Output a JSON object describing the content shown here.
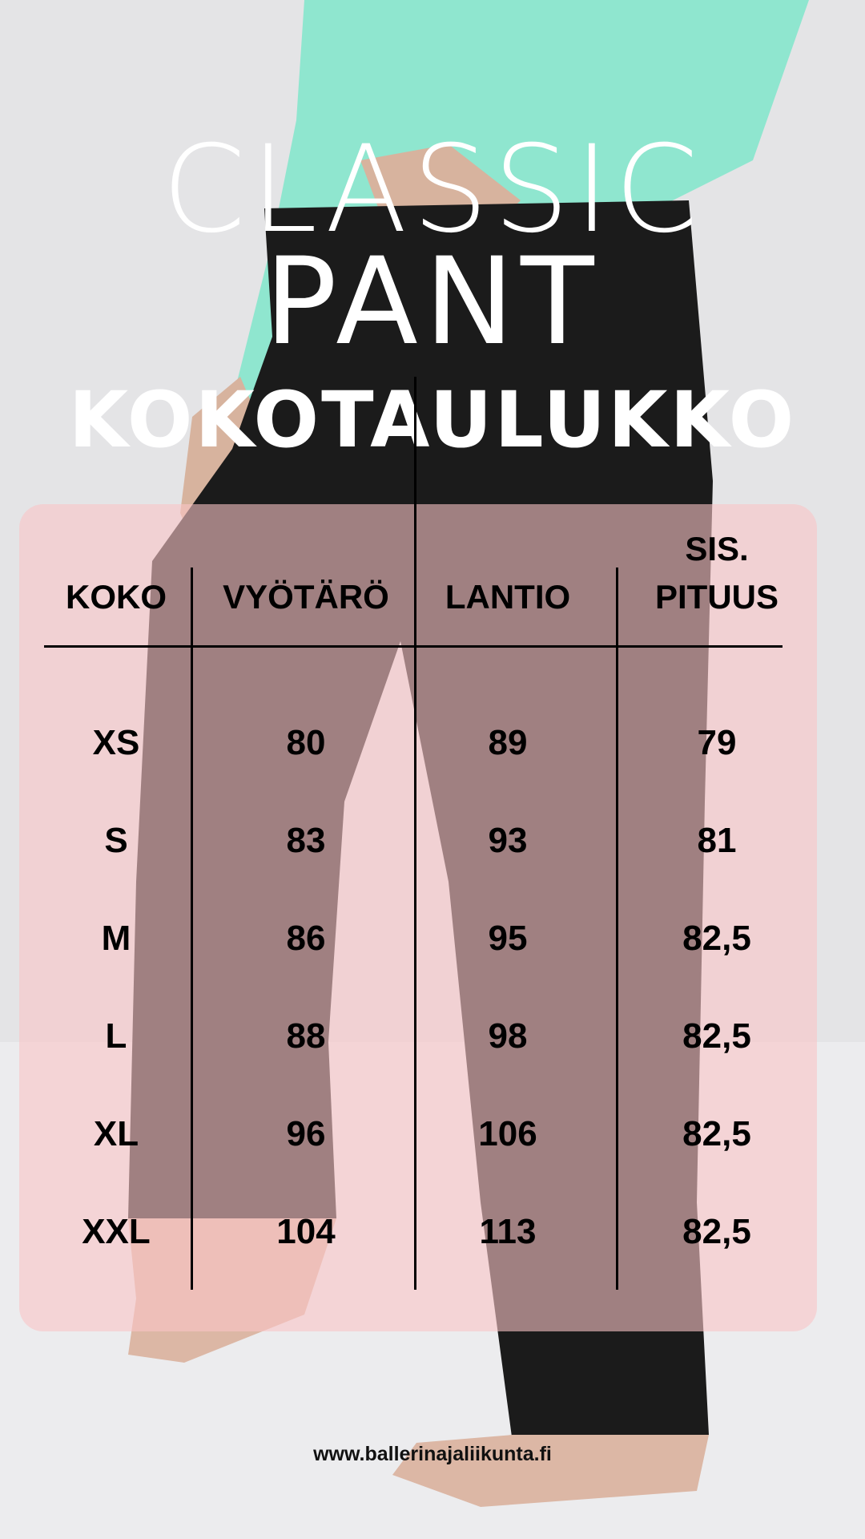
{
  "title": {
    "line1": "CLASSIC",
    "line2": "PANT",
    "line3": "KOKOTAULUKKO"
  },
  "colors": {
    "panel": "#f5c6c8",
    "text": "#000000",
    "title": "#ffffff",
    "top": "#8fe6cf",
    "pants": "#1b1b1b"
  },
  "table": {
    "headers": [
      "KOKO",
      "VYÖTÄRÖ",
      "LANTIO",
      "SIS.",
      "PITUUS"
    ],
    "rows": [
      [
        "XS",
        "80",
        "89",
        "79"
      ],
      [
        "S",
        "83",
        "93",
        "81"
      ],
      [
        "M",
        "86",
        "95",
        "82,5"
      ],
      [
        "L",
        "88",
        "98",
        "82,5"
      ],
      [
        "XL",
        "96",
        "106",
        "82,5"
      ],
      [
        "XXL",
        "104",
        "113",
        "82,5"
      ]
    ]
  },
  "footer": {
    "url": "www.ballerinajaliikunta.fi"
  }
}
